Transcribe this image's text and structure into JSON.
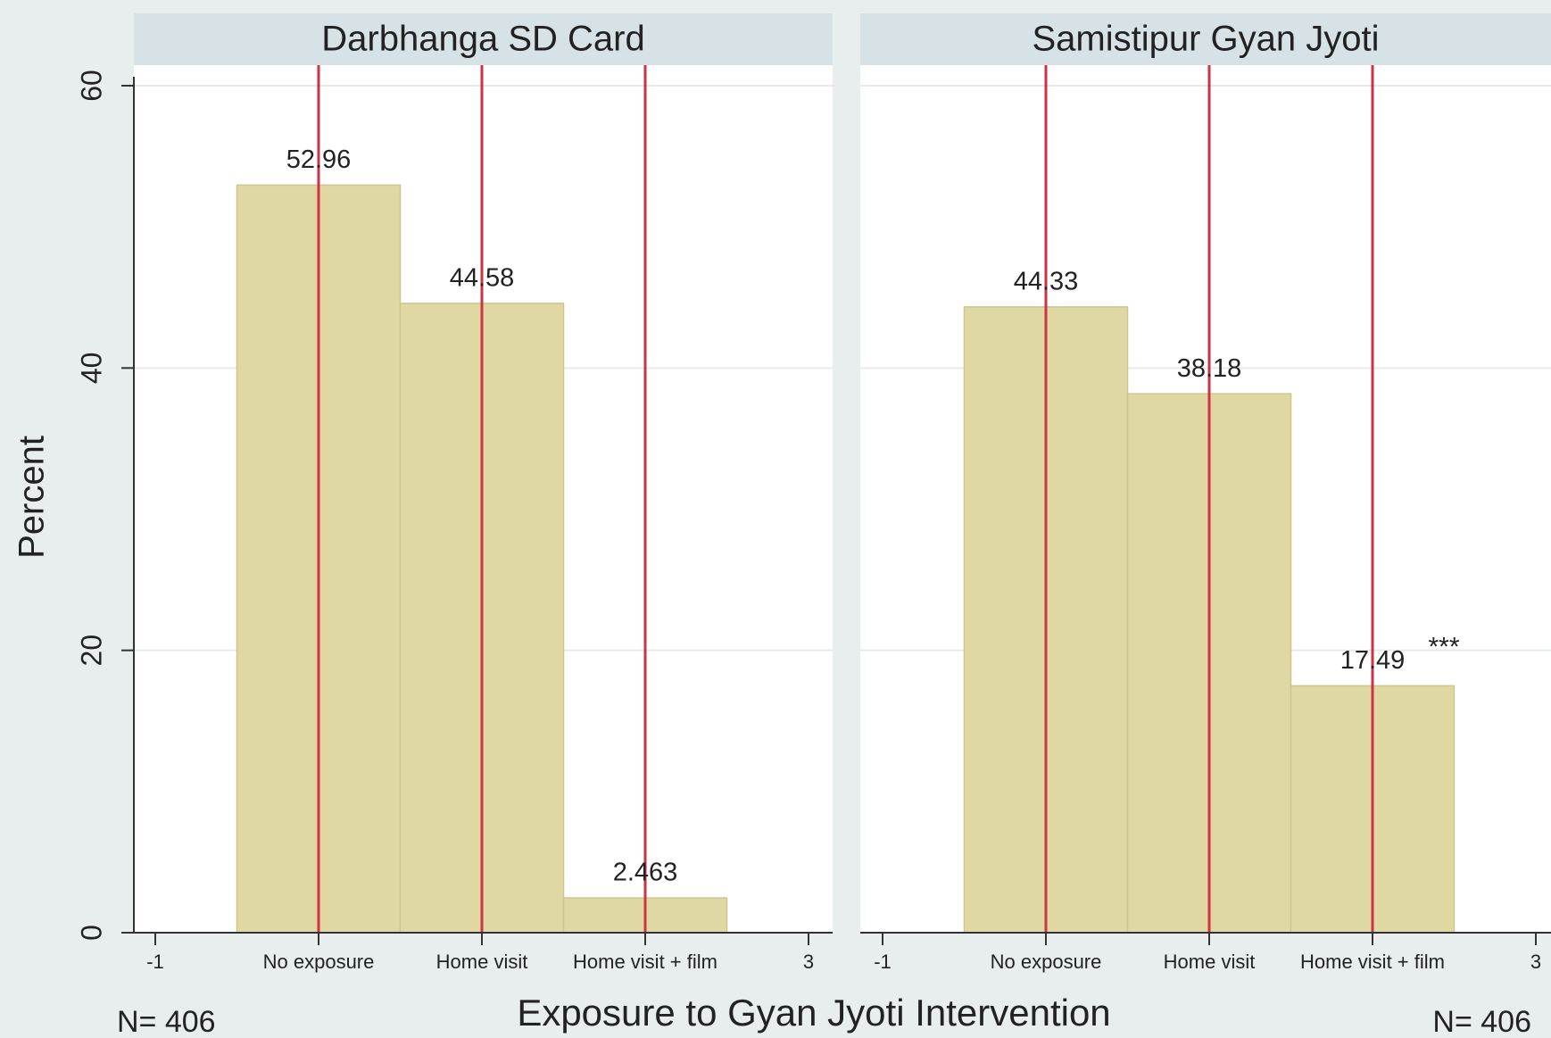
{
  "figure": {
    "ylabel": "Percent",
    "xlabel": "Exposure to Gyan Jyoti Intervention"
  },
  "chart_data": [
    {
      "type": "bar",
      "title": "Darbhanga SD Card",
      "x": [
        0,
        1,
        2
      ],
      "values": [
        52.96,
        44.58,
        2.463
      ],
      "color": "#e0d8a2",
      "line_color": "#cc3344",
      "xlim": [
        -1,
        3
      ],
      "xticks": [
        -1,
        {
          "value": 0,
          "label": "No exposure"
        },
        {
          "value": 1,
          "label": "Home visit"
        },
        {
          "value": 2,
          "label": "Home visit + film"
        },
        3
      ],
      "ylim": [
        0,
        60
      ],
      "yticks": [
        0,
        20,
        40,
        60
      ],
      "grid": true,
      "note": "N= 406"
    },
    {
      "type": "bar",
      "title": "Samistipur Gyan Jyoti",
      "x": [
        0,
        1,
        2
      ],
      "values": [
        44.33,
        38.18,
        17.49
      ],
      "color": "#e0d8a2",
      "line_color": "#cc3344",
      "xlim": [
        -1,
        3
      ],
      "xticks": [
        -1,
        {
          "value": 0,
          "label": "No exposure"
        },
        {
          "value": 1,
          "label": "Home visit"
        },
        {
          "value": 2,
          "label": "Home visit + film"
        },
        3
      ],
      "ylim": [
        0,
        60
      ],
      "yticks": [
        0,
        20,
        40,
        60
      ],
      "grid": true,
      "note": "N= 406",
      "annotation": "***"
    }
  ]
}
